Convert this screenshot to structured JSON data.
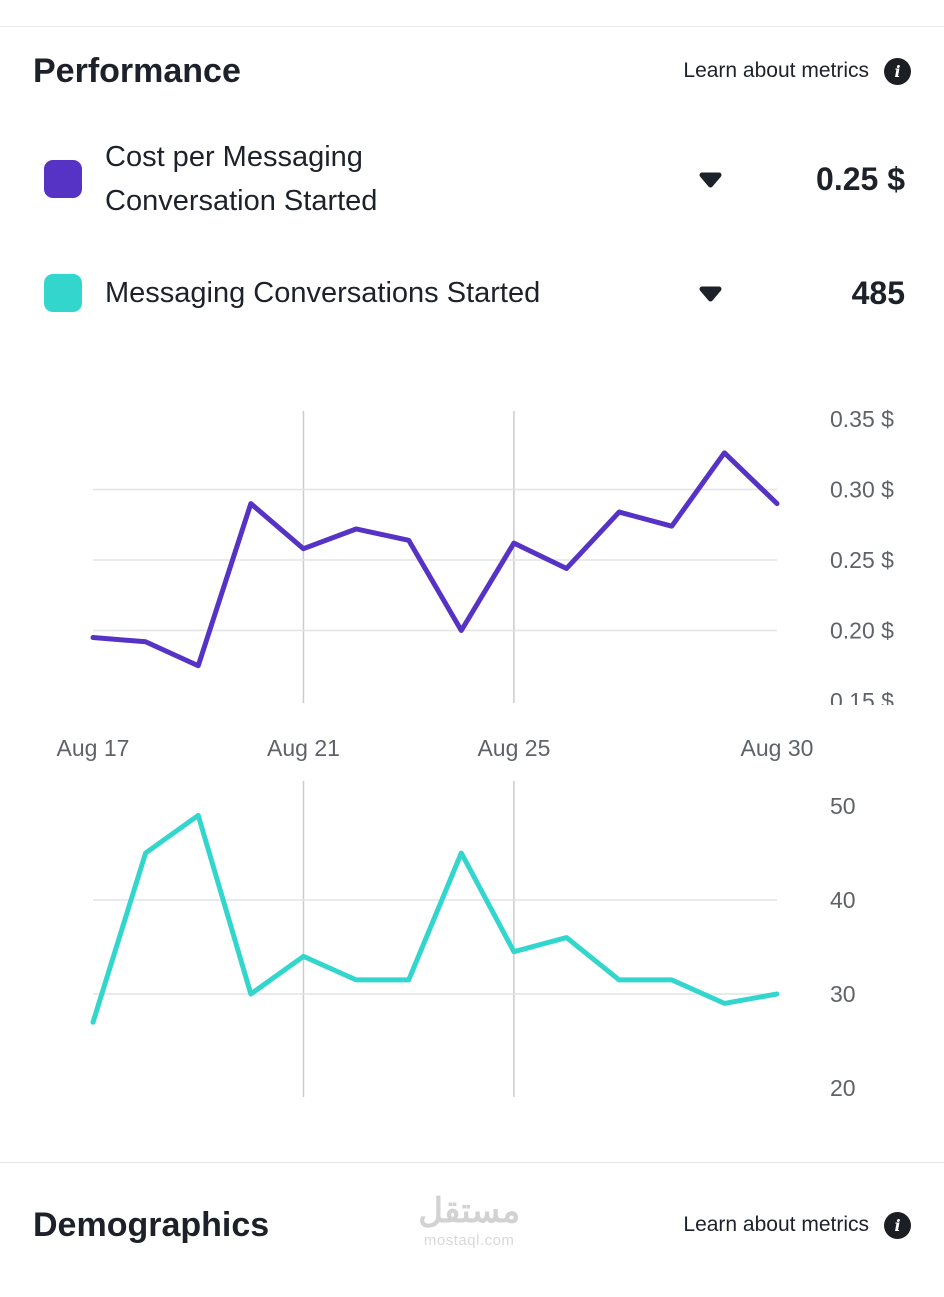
{
  "header": {
    "title": "Performance",
    "learn_link": "Learn about metrics",
    "info_icon_glyph": "i"
  },
  "metrics": [
    {
      "label": "Cost per Messaging Conversation Started",
      "label_lines": [
        "Cost per Messaging",
        "Conversation Started"
      ],
      "value": "0.25 $",
      "color": "#5633c4"
    },
    {
      "label": "Messaging Conversations Started",
      "label_lines": [
        "Messaging Conversations Started"
      ],
      "value": "485",
      "color": "#32d6cd"
    }
  ],
  "chart_data": [
    {
      "type": "line",
      "name": "cost-per-messaging-conversation-started",
      "title": "Cost per Messaging Conversation Started",
      "color": "#5633c4",
      "x": [
        "Aug 17",
        "Aug 18",
        "Aug 19",
        "Aug 20",
        "Aug 21",
        "Aug 22",
        "Aug 23",
        "Aug 24",
        "Aug 25",
        "Aug 26",
        "Aug 27",
        "Aug 28",
        "Aug 29",
        "Aug 30"
      ],
      "values": [
        0.195,
        0.192,
        0.175,
        0.29,
        0.258,
        0.272,
        0.264,
        0.2,
        0.262,
        0.244,
        0.284,
        0.274,
        0.326,
        0.29
      ],
      "ylim": [
        0.15,
        0.35
      ],
      "yticks": [
        "0.35 $",
        "0.30 $",
        "0.25 $",
        "0.20 $",
        "0.15 $"
      ],
      "ytick_values": [
        0.35,
        0.3,
        0.25,
        0.2,
        0.15
      ],
      "grid_y_values": [
        0.3,
        0.25,
        0.2
      ],
      "grid_x_indices": [
        4,
        8
      ],
      "xtick_indices": [
        0,
        4,
        8,
        13
      ],
      "xtick_labels": [
        "Aug 17",
        "Aug 21",
        "Aug 25",
        "Aug 30"
      ],
      "xlabel": "",
      "ylabel": "",
      "grid": true,
      "legend_position": "none"
    },
    {
      "type": "line",
      "name": "messaging-conversations-started",
      "title": "Messaging Conversations Started",
      "color": "#32d6cd",
      "x": [
        "Aug 17",
        "Aug 18",
        "Aug 19",
        "Aug 20",
        "Aug 21",
        "Aug 22",
        "Aug 23",
        "Aug 24",
        "Aug 25",
        "Aug 26",
        "Aug 27",
        "Aug 28",
        "Aug 29",
        "Aug 30"
      ],
      "values": [
        27,
        45,
        49,
        30,
        34,
        31.5,
        31.5,
        45,
        34.5,
        36,
        31.5,
        31.5,
        29,
        30
      ],
      "ylim": [
        20,
        50
      ],
      "yticks": [
        "50",
        "40",
        "30",
        "20"
      ],
      "ytick_values": [
        50,
        40,
        30,
        20
      ],
      "grid_y_values": [
        40,
        30
      ],
      "grid_x_indices": [
        4,
        8
      ],
      "xtick_indices": [],
      "xtick_labels": [],
      "xlabel": "",
      "ylabel": "",
      "grid": true,
      "legend_position": "none"
    }
  ],
  "footer": {
    "title": "Demographics",
    "learn_link": "Learn about metrics",
    "info_icon_glyph": "i",
    "watermark": {
      "arabic": "مستقل",
      "domain": "mostaql.com"
    }
  }
}
